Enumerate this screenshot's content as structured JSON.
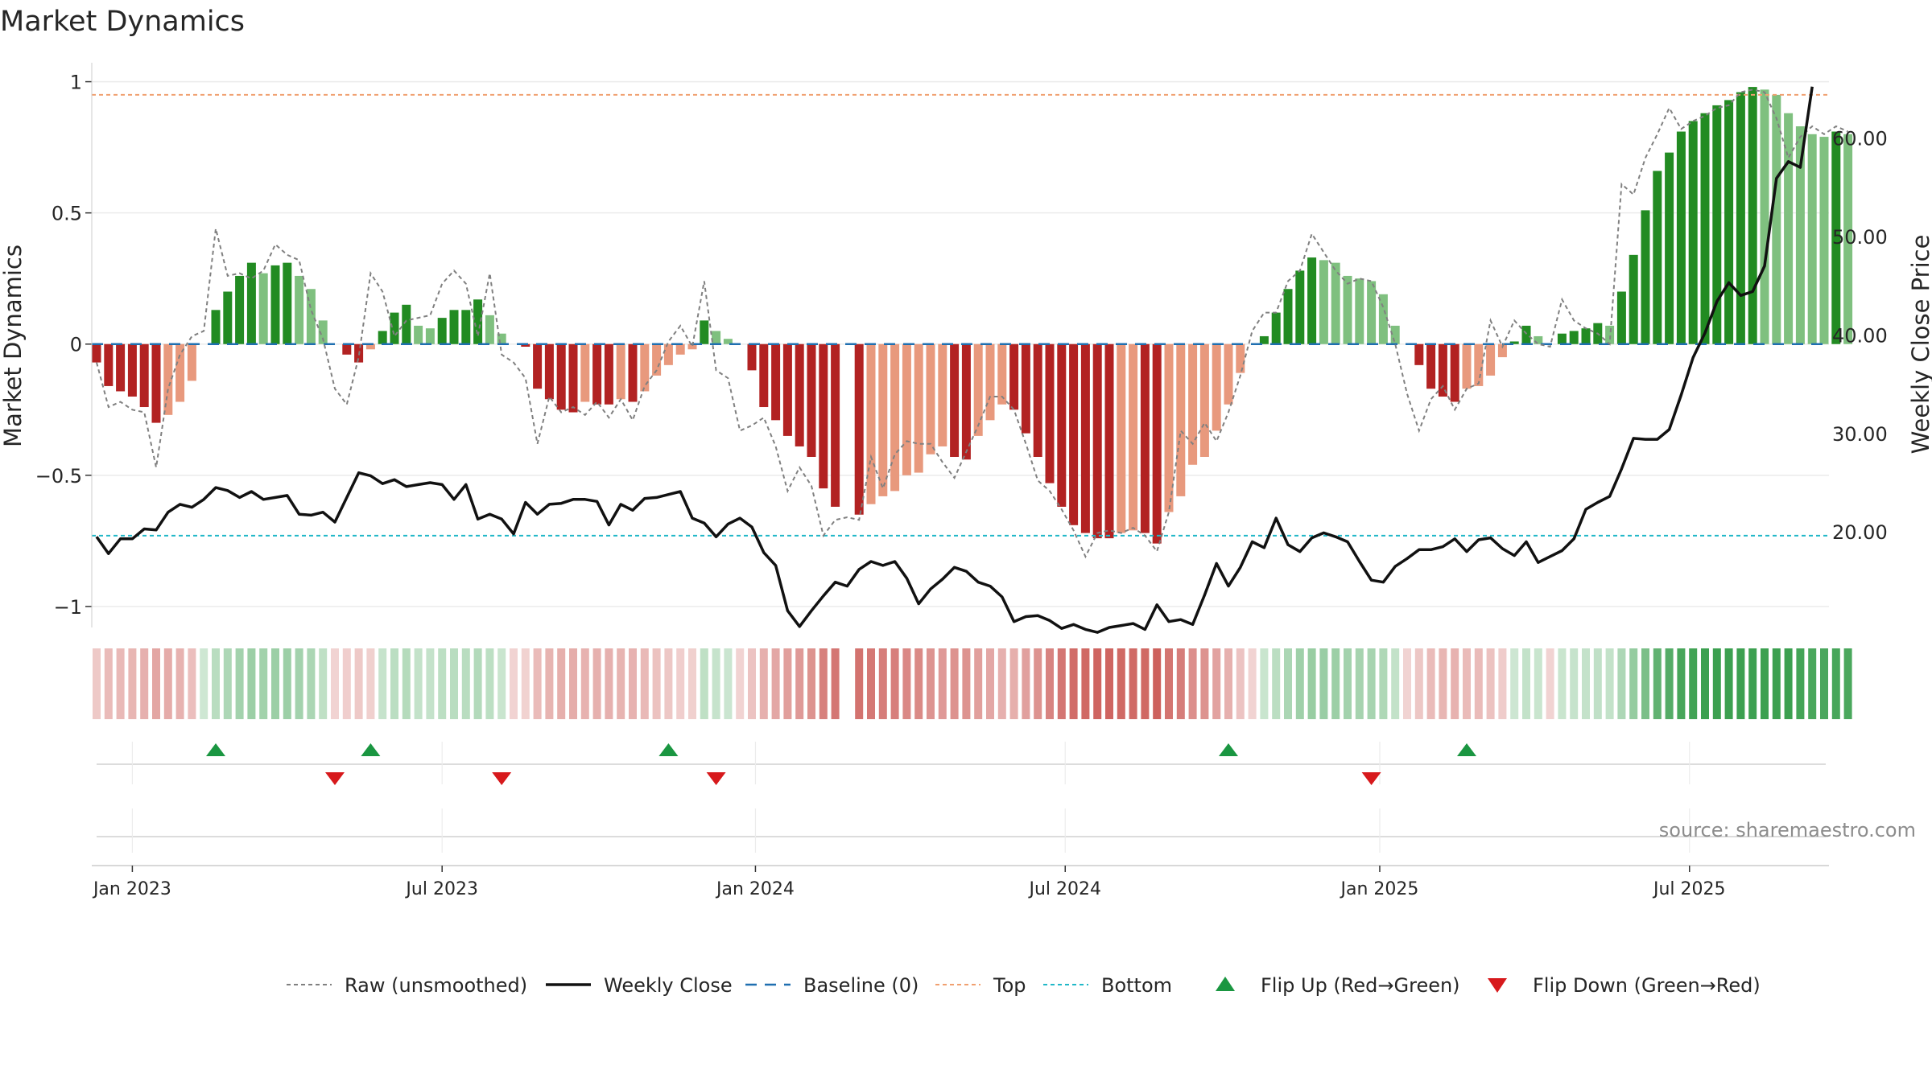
{
  "chart_data": {
    "type": "bar",
    "title": "Market Dynamics",
    "ylabel": "Market Dynamics",
    "y2label": "Weekly Close Price",
    "ylim": [
      -1.08,
      1.06
    ],
    "y2lim": [
      10.3,
      67.3
    ],
    "yticks": [
      1,
      0.5,
      0,
      -0.5,
      -1
    ],
    "ytick_labels": [
      "1",
      "0.5",
      "0",
      "−0.5",
      "−1"
    ],
    "y2ticks": [
      60,
      50,
      40,
      30,
      20
    ],
    "y2tick_labels": [
      "60.00",
      "50.00",
      "40.00",
      "30.00",
      "20.00"
    ],
    "x_start": "2022-12-12",
    "week_count": 145,
    "xticks": [
      {
        "label": "Jan 2023",
        "week": 3
      },
      {
        "label": "Jul 2023",
        "week": 29
      },
      {
        "label": "Jan 2024",
        "week": 55.3
      },
      {
        "label": "Jul 2024",
        "week": 81.3
      },
      {
        "label": "Jan 2025",
        "week": 107.7
      },
      {
        "label": "Jul 2025",
        "week": 133.7
      }
    ],
    "top_line": 0.95,
    "bottom_line": -0.73,
    "baseline": 0,
    "smoothed": [
      -0.07,
      -0.16,
      -0.18,
      -0.2,
      -0.24,
      -0.3,
      -0.27,
      -0.22,
      -0.14,
      0.0,
      0.13,
      0.2,
      0.26,
      0.31,
      0.27,
      0.3,
      0.31,
      0.26,
      0.21,
      0.09,
      0.0,
      -0.04,
      -0.07,
      -0.02,
      0.05,
      0.12,
      0.15,
      0.07,
      0.06,
      0.1,
      0.13,
      0.13,
      0.17,
      0.11,
      0.04,
      0.0,
      -0.01,
      -0.17,
      -0.21,
      -0.25,
      -0.26,
      -0.22,
      -0.23,
      -0.23,
      -0.21,
      -0.22,
      -0.18,
      -0.12,
      -0.08,
      -0.04,
      -0.02,
      0.09,
      0.05,
      0.02,
      0.0,
      -0.1,
      -0.24,
      -0.29,
      -0.35,
      -0.39,
      -0.43,
      -0.55,
      -0.62,
      0.0,
      -0.65,
      -0.61,
      -0.58,
      -0.56,
      -0.5,
      -0.49,
      -0.42,
      -0.39,
      -0.43,
      -0.44,
      -0.35,
      -0.29,
      -0.23,
      -0.25,
      -0.34,
      -0.43,
      -0.53,
      -0.62,
      -0.69,
      -0.72,
      -0.74,
      -0.74,
      -0.72,
      -0.71,
      -0.72,
      -0.76,
      -0.64,
      -0.58,
      -0.46,
      -0.43,
      -0.33,
      -0.23,
      -0.11,
      0.0,
      0.03,
      0.12,
      0.21,
      0.28,
      0.33,
      0.32,
      0.31,
      0.26,
      0.25,
      0.24,
      0.19,
      0.07,
      0.0,
      -0.08,
      -0.17,
      -0.2,
      -0.22,
      -0.17,
      -0.16,
      -0.12,
      -0.05,
      0.01,
      0.07,
      0.03,
      0.0,
      0.04,
      0.05,
      0.06,
      0.08,
      0.07,
      0.2,
      0.34,
      0.51,
      0.66,
      0.73,
      0.81,
      0.85,
      0.88,
      0.91,
      0.93,
      0.96,
      0.98,
      0.97,
      0.95,
      0.88,
      0.83,
      0.8,
      0.79,
      0.81,
      0.8
    ],
    "raw": [
      -0.07,
      -0.24,
      -0.22,
      -0.25,
      -0.26,
      -0.47,
      -0.17,
      -0.04,
      0.03,
      0.05,
      0.44,
      0.26,
      0.27,
      0.25,
      0.28,
      0.38,
      0.34,
      0.32,
      0.13,
      0.02,
      -0.17,
      -0.23,
      -0.05,
      0.27,
      0.2,
      0.03,
      0.09,
      0.1,
      0.11,
      0.23,
      0.28,
      0.23,
      0.03,
      0.27,
      -0.04,
      -0.07,
      -0.13,
      -0.38,
      -0.2,
      -0.26,
      -0.24,
      -0.27,
      -0.22,
      -0.28,
      -0.21,
      -0.29,
      -0.16,
      -0.1,
      0.01,
      0.07,
      -0.01,
      0.24,
      -0.1,
      -0.13,
      -0.33,
      -0.31,
      -0.28,
      -0.39,
      -0.56,
      -0.47,
      -0.54,
      -0.73,
      -0.67,
      -0.66,
      -0.67,
      -0.43,
      -0.55,
      -0.42,
      -0.37,
      -0.38,
      -0.38,
      -0.45,
      -0.51,
      -0.41,
      -0.31,
      -0.2,
      -0.2,
      -0.25,
      -0.38,
      -0.52,
      -0.56,
      -0.63,
      -0.71,
      -0.81,
      -0.72,
      -0.71,
      -0.72,
      -0.7,
      -0.73,
      -0.79,
      -0.64,
      -0.33,
      -0.38,
      -0.3,
      -0.37,
      -0.26,
      -0.12,
      0.05,
      0.12,
      0.12,
      0.24,
      0.28,
      0.42,
      0.35,
      0.28,
      0.23,
      0.25,
      0.24,
      0.14,
      0.0,
      -0.19,
      -0.33,
      -0.21,
      -0.16,
      -0.25,
      -0.17,
      -0.15,
      0.09,
      -0.01,
      0.09,
      0.04,
      0.0,
      -0.01,
      0.17,
      0.09,
      0.06,
      0.04,
      0.0,
      0.61,
      0.57,
      0.71,
      0.8,
      0.9,
      0.82,
      0.85,
      0.87,
      0.9,
      0.91,
      0.96,
      0.97,
      0.96,
      0.86,
      0.71,
      0.79,
      0.83,
      0.8,
      0.83,
      0.81
    ],
    "price": [
      19.5,
      17.8,
      19.3,
      19.3,
      20.3,
      20.2,
      22.0,
      22.8,
      22.5,
      23.3,
      24.5,
      24.2,
      23.5,
      24.1,
      23.3,
      23.5,
      23.7,
      21.8,
      21.7,
      22.0,
      21.0,
      23.5,
      26.0,
      25.7,
      24.9,
      25.3,
      24.6,
      24.8,
      25.0,
      24.8,
      23.3,
      24.8,
      21.3,
      21.8,
      21.3,
      19.8,
      23.0,
      21.8,
      22.8,
      22.9,
      23.3,
      23.3,
      23.1,
      20.7,
      22.8,
      22.2,
      23.4,
      23.5,
      23.8,
      24.1,
      21.4,
      20.9,
      19.5,
      20.8,
      21.4,
      20.5,
      17.9,
      16.6,
      12.0,
      10.4,
      12.0,
      13.5,
      14.9,
      14.5,
      16.2,
      17.0,
      16.6,
      17.0,
      15.3,
      12.7,
      14.2,
      15.2,
      16.4,
      16.0,
      14.9,
      14.5,
      13.4,
      10.9,
      11.4,
      11.5,
      11.0,
      10.2,
      10.6,
      10.1,
      9.8,
      10.3,
      10.5,
      10.7,
      10.1,
      12.6,
      10.9,
      11.1,
      10.6,
      13.6,
      16.8,
      14.5,
      16.4,
      19.0,
      18.4,
      21.4,
      18.7,
      18.0,
      19.4,
      19.9,
      19.5,
      19.0,
      17.0,
      15.1,
      14.9,
      16.5,
      17.3,
      18.2,
      18.2,
      18.5,
      19.3,
      18.0,
      19.2,
      19.4,
      18.3,
      17.6,
      19.0,
      16.9,
      17.5,
      18.1,
      19.3,
      22.3,
      23.0,
      23.6,
      26.4,
      29.5,
      29.4,
      29.4,
      30.4,
      33.9,
      37.7,
      40.2,
      43.4,
      45.3,
      44.0,
      44.4,
      47.0,
      55.9,
      57.6,
      57.0,
      65.2
    ],
    "strip_breaks": [
      9,
      19,
      22,
      33,
      48,
      52,
      63,
      95,
      107,
      115,
      125
    ],
    "flip_up": [
      10,
      23,
      48,
      95,
      115
    ],
    "flip_down": [
      20,
      34,
      52,
      107
    ],
    "legend": [
      "Raw (unsmoothed)",
      "Weekly Close",
      "Baseline (0)",
      "Top",
      "Bottom",
      "Flip Up (Red→Green)",
      "Flip Down (Green→Red)"
    ],
    "source": "source: sharemaestro.com",
    "colors": {
      "green_dark": "#228b22",
      "green_light": "#7fc07f",
      "red_dark": "#b22222",
      "red_light": "#e8997d",
      "top": "#f0a070",
      "bottom": "#20b8c8",
      "baseline": "#1f6fb0",
      "flip_up": "#1a9641",
      "flip_down": "#d7191c"
    }
  }
}
